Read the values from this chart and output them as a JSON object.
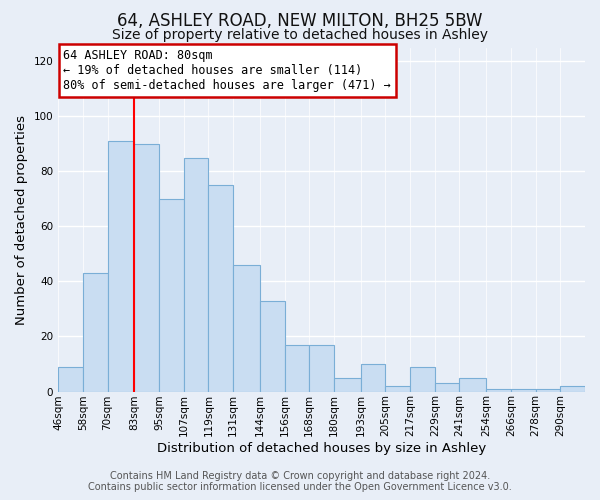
{
  "title": "64, ASHLEY ROAD, NEW MILTON, BH25 5BW",
  "subtitle": "Size of property relative to detached houses in Ashley",
  "xlabel": "Distribution of detached houses by size in Ashley",
  "ylabel": "Number of detached properties",
  "bin_labels": [
    "46sqm",
    "58sqm",
    "70sqm",
    "83sqm",
    "95sqm",
    "107sqm",
    "119sqm",
    "131sqm",
    "144sqm",
    "156sqm",
    "168sqm",
    "180sqm",
    "193sqm",
    "205sqm",
    "217sqm",
    "229sqm",
    "241sqm",
    "254sqm",
    "266sqm",
    "278sqm",
    "290sqm"
  ],
  "bin_edges": [
    46,
    58,
    70,
    83,
    95,
    107,
    119,
    131,
    144,
    156,
    168,
    180,
    193,
    205,
    217,
    229,
    241,
    254,
    266,
    278,
    290
  ],
  "bar_heights": [
    9,
    43,
    91,
    90,
    70,
    85,
    75,
    46,
    33,
    17,
    17,
    5,
    10,
    2,
    9,
    3,
    5,
    1,
    1,
    1,
    2
  ],
  "bar_color": "#c9ddf2",
  "bar_edge_color": "#7aaed6",
  "ylim": [
    0,
    125
  ],
  "yticks": [
    0,
    20,
    40,
    60,
    80,
    100,
    120
  ],
  "red_line_x": 83,
  "annotation_title": "64 ASHLEY ROAD: 80sqm",
  "annotation_line1": "← 19% of detached houses are smaller (114)",
  "annotation_line2": "80% of semi-detached houses are larger (471) →",
  "annotation_box_color": "#ffffff",
  "annotation_box_edge_color": "#cc0000",
  "footer1": "Contains HM Land Registry data © Crown copyright and database right 2024.",
  "footer2": "Contains public sector information licensed under the Open Government Licence v3.0.",
  "background_color": "#e8eef7",
  "plot_bg_color": "#e8eef7",
  "grid_color": "#ffffff",
  "title_fontsize": 12,
  "subtitle_fontsize": 10,
  "axis_label_fontsize": 9.5,
  "tick_fontsize": 7.5,
  "footer_fontsize": 7,
  "annotation_fontsize": 8.5
}
